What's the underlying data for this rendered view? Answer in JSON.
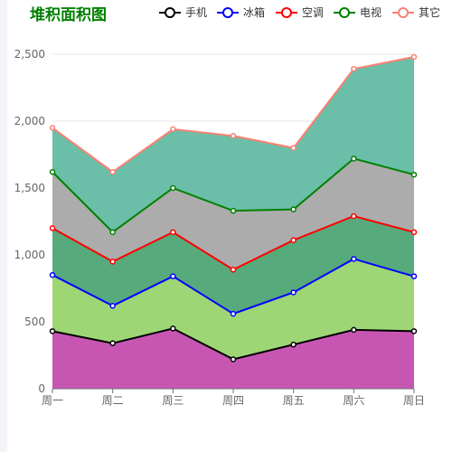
{
  "chart_data": {
    "type": "area",
    "stacked": true,
    "title": "堆积面积图",
    "categories": [
      "周一",
      "周二",
      "周三",
      "周四",
      "周五",
      "周六",
      "周日"
    ],
    "ylim": [
      0,
      2500
    ],
    "yticks": [
      0,
      500,
      1000,
      1500,
      2000,
      2500
    ],
    "ytick_labels": [
      "0",
      "500",
      "1,000",
      "1,500",
      "2,000",
      "2,500"
    ],
    "grid": true,
    "legend": "top-right",
    "series": [
      {
        "name": "手机",
        "values": [
          430,
          340,
          450,
          220,
          330,
          440,
          430
        ],
        "line_color": "#000000",
        "fill_color": "#c44daf"
      },
      {
        "name": "冰箱",
        "values": [
          420,
          280,
          390,
          340,
          390,
          530,
          410
        ],
        "line_color": "#0000ff",
        "fill_color": "#99d46f"
      },
      {
        "name": "空调",
        "values": [
          350,
          330,
          330,
          330,
          390,
          320,
          330
        ],
        "line_color": "#ff0000",
        "fill_color": "#4ea574"
      },
      {
        "name": "电视",
        "values": [
          420,
          220,
          330,
          440,
          230,
          430,
          430
        ],
        "line_color": "#008000",
        "fill_color": "#a8a8a8"
      },
      {
        "name": "其它",
        "values": [
          330,
          450,
          440,
          560,
          460,
          670,
          880
        ],
        "line_color": "#fa8072",
        "fill_color": "#63bba3"
      }
    ]
  }
}
